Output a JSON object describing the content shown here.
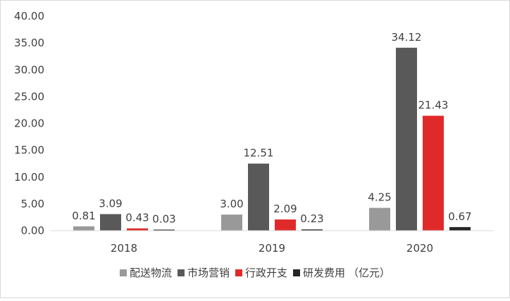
{
  "chart_data": {
    "type": "bar",
    "categories": [
      "2018",
      "2019",
      "2020"
    ],
    "series": [
      {
        "name": "配送物流",
        "values": [
          0.81,
          3.0,
          4.25
        ],
        "color": "#999999"
      },
      {
        "name": "市场营销",
        "values": [
          3.09,
          12.51,
          34.12
        ],
        "color": "#595959"
      },
      {
        "name": "行政开支",
        "values": [
          0.43,
          2.09,
          21.43
        ],
        "color": "#e02a2a"
      },
      {
        "name": "研发费用",
        "values": [
          0.03,
          0.23,
          0.67
        ],
        "color": "#262626"
      }
    ],
    "value_labels": [
      [
        "0.81",
        "3.00",
        "4.25"
      ],
      [
        "3.09",
        "12.51",
        "34.12"
      ],
      [
        "0.43",
        "2.09",
        "21.43"
      ],
      [
        "0.03",
        "0.23",
        "0.67"
      ]
    ],
    "yticks": [
      "0.00",
      "5.00",
      "10.00",
      "15.00",
      "20.00",
      "25.00",
      "30.00",
      "35.00",
      "40.00"
    ],
    "ylim": [
      0,
      40
    ],
    "unit_label": "（亿元）",
    "legend_position": "bottom",
    "grid": false
  }
}
